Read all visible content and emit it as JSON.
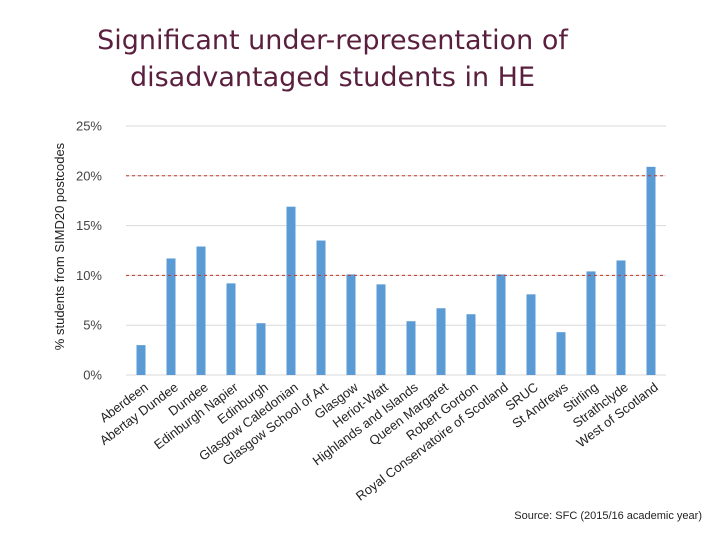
{
  "slide": {
    "title_line1": "Significant under-representation of",
    "title_line2": "disadvantaged students in HE",
    "source": "Source: SFC (2015/16 academic year)"
  },
  "colors": {
    "title": "#5b1f3e",
    "bar": "#5b9bd5",
    "reference_line": "#c0392b",
    "grid": "#d9d9d9",
    "axis_text": "#444444"
  },
  "chart_data": {
    "type": "bar",
    "title": "",
    "xlabel": "",
    "ylabel": "% students from SIMD20 postcodes",
    "ylim": [
      0,
      25
    ],
    "y_ticks": [
      0,
      5,
      10,
      15,
      20,
      25
    ],
    "y_tick_format": "percent",
    "grid": true,
    "reference_lines": [
      10,
      20
    ],
    "categories": [
      "Aberdeen",
      "Abertay Dundee",
      "Dundee",
      "Edinburgh Napier",
      "Edinburgh",
      "Glasgow Caledonian",
      "Glasgow School of Art",
      "Glasgow",
      "Heriot-Watt",
      "Highlands and Islands",
      "Queen Margaret",
      "Robert Gordon",
      "Royal Conservatoire of Scotland",
      "SRUC",
      "St Andrews",
      "Stirling",
      "Strathclyde",
      "West of Scotland"
    ],
    "values": [
      3.0,
      11.7,
      12.9,
      9.2,
      5.2,
      16.9,
      13.5,
      10.1,
      9.1,
      5.4,
      6.7,
      6.1,
      10.1,
      8.1,
      4.3,
      10.4,
      11.5,
      20.9
    ]
  }
}
